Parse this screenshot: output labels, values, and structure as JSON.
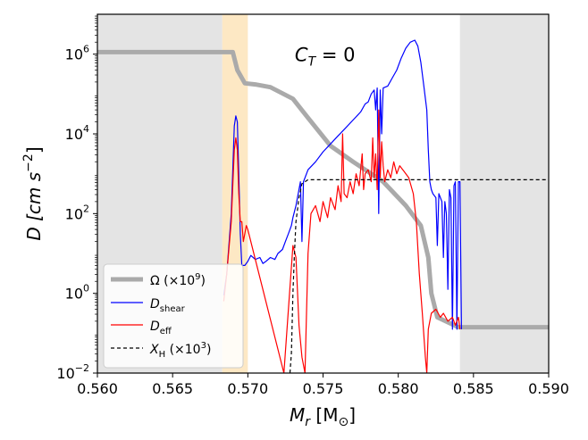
{
  "chart_data": {
    "type": "line",
    "title": "",
    "annotation": {
      "text_main": "C",
      "text_sub": "T",
      "text_rest": " = 0",
      "x": 0.5755,
      "y_log10": 6.0
    },
    "xlabel": {
      "main": "M",
      "sub": "r",
      "unit": " [M",
      "unit_sub": "⊙",
      "close": "]"
    },
    "ylabel": "D [cm s",
    "ylabel_exp": "−2",
    "ylabel_close": "]",
    "xlim": [
      0.56,
      0.59
    ],
    "ylim_log10": [
      -2,
      7
    ],
    "xticks": [
      0.56,
      0.565,
      0.57,
      0.575,
      0.58,
      0.585,
      0.59
    ],
    "xtick_labels": [
      "0.560",
      "0.565",
      "0.570",
      "0.575",
      "0.580",
      "0.585",
      "0.590"
    ],
    "yticks_log10": [
      -2,
      0,
      2,
      4,
      6
    ],
    "ytick_labels": [
      "10",
      "10",
      "10",
      "10",
      "10"
    ],
    "ytick_exps": [
      "−2",
      "0",
      "2",
      "4",
      "6"
    ],
    "regions": [
      {
        "name": "convective-core-region",
        "x0": 0.56,
        "x1": 0.5683,
        "color": "#e4e4e4"
      },
      {
        "name": "transition-band-region",
        "x0": 0.5683,
        "x1": 0.57,
        "color": "#fde8c4"
      },
      {
        "name": "convective-envelope-region",
        "x0": 0.5841,
        "x1": 0.59,
        "color": "#e4e4e4"
      }
    ],
    "series": [
      {
        "name": "Omega",
        "legend_label": "Ω (×10",
        "legend_exp": "9",
        "legend_close": ")",
        "color": "#aaaaaa",
        "width": 5,
        "dash": "",
        "points": [
          [
            0.56,
            6.05
          ],
          [
            0.569,
            6.05
          ],
          [
            0.5693,
            5.6
          ],
          [
            0.5698,
            5.27
          ],
          [
            0.5705,
            5.24
          ],
          [
            0.5715,
            5.17
          ],
          [
            0.573,
            4.88
          ],
          [
            0.574,
            4.4
          ],
          [
            0.5755,
            3.7
          ],
          [
            0.577,
            3.3
          ],
          [
            0.579,
            2.8
          ],
          [
            0.5805,
            2.2
          ],
          [
            0.5815,
            1.7
          ],
          [
            0.582,
            0.9
          ],
          [
            0.5822,
            0.0
          ],
          [
            0.5826,
            -0.6
          ],
          [
            0.584,
            -0.85
          ],
          [
            0.59,
            -0.85
          ]
        ]
      },
      {
        "name": "D_shear",
        "legend_label": "D",
        "legend_sub": "shear",
        "color": "#0000ff",
        "width": 1.2,
        "dash": "",
        "points": [
          [
            0.5684,
            -0.05
          ],
          [
            0.5686,
            0.5
          ],
          [
            0.5689,
            2.0
          ],
          [
            0.5691,
            4.2
          ],
          [
            0.5692,
            4.45
          ],
          [
            0.5693,
            4.3
          ],
          [
            0.5694,
            3.0
          ],
          [
            0.5695,
            1.5
          ],
          [
            0.5696,
            0.7
          ],
          [
            0.5698,
            0.7
          ],
          [
            0.57,
            0.8
          ],
          [
            0.5702,
            0.95
          ],
          [
            0.5705,
            0.85
          ],
          [
            0.5708,
            0.9
          ],
          [
            0.571,
            0.75
          ],
          [
            0.5712,
            0.8
          ],
          [
            0.5715,
            0.9
          ],
          [
            0.5718,
            0.85
          ],
          [
            0.572,
            1.0
          ],
          [
            0.5723,
            1.1
          ],
          [
            0.5725,
            1.3
          ],
          [
            0.5727,
            1.5
          ],
          [
            0.5729,
            1.7
          ],
          [
            0.573,
            1.9
          ],
          [
            0.5732,
            2.2
          ],
          [
            0.5735,
            2.8
          ],
          [
            0.5736,
            1.3
          ],
          [
            0.5737,
            2.8
          ],
          [
            0.574,
            3.1
          ],
          [
            0.5745,
            3.3
          ],
          [
            0.575,
            3.55
          ],
          [
            0.5755,
            3.75
          ],
          [
            0.576,
            3.95
          ],
          [
            0.5765,
            4.15
          ],
          [
            0.577,
            4.35
          ],
          [
            0.5775,
            4.55
          ],
          [
            0.5778,
            4.75
          ],
          [
            0.578,
            4.8
          ],
          [
            0.5782,
            5.0
          ],
          [
            0.5784,
            5.1
          ],
          [
            0.5785,
            4.6
          ],
          [
            0.5786,
            5.15
          ],
          [
            0.5787,
            2.0
          ],
          [
            0.5788,
            5.1
          ],
          [
            0.5789,
            4.0
          ],
          [
            0.579,
            5.15
          ],
          [
            0.5793,
            5.2
          ],
          [
            0.5796,
            5.4
          ],
          [
            0.5799,
            5.6
          ],
          [
            0.5802,
            5.9
          ],
          [
            0.5805,
            6.15
          ],
          [
            0.5808,
            6.3
          ],
          [
            0.5811,
            6.35
          ],
          [
            0.5813,
            6.2
          ],
          [
            0.5815,
            5.8
          ],
          [
            0.5817,
            5.2
          ],
          [
            0.5819,
            4.6
          ],
          [
            0.582,
            3.6
          ],
          [
            0.5821,
            2.8
          ],
          [
            0.5822,
            2.6
          ],
          [
            0.5823,
            2.5
          ],
          [
            0.5825,
            2.4
          ],
          [
            0.5826,
            1.2
          ],
          [
            0.5827,
            2.5
          ],
          [
            0.5829,
            2.3
          ],
          [
            0.583,
            0.9
          ],
          [
            0.5831,
            2.3
          ],
          [
            0.5832,
            2.0
          ],
          [
            0.5833,
            0.1
          ],
          [
            0.5834,
            2.6
          ],
          [
            0.5835,
            2.4
          ],
          [
            0.5836,
            -0.9
          ],
          [
            0.5837,
            2.7
          ],
          [
            0.5838,
            2.8
          ],
          [
            0.5839,
            -0.9
          ],
          [
            0.584,
            2.8
          ],
          [
            0.5841,
            2.8
          ],
          [
            0.5842,
            -0.9
          ]
        ]
      },
      {
        "name": "D_eff",
        "legend_label": "D",
        "legend_sub": "eff",
        "color": "#ff0000",
        "width": 1.2,
        "dash": "",
        "points": [
          [
            0.5684,
            -0.2
          ],
          [
            0.5686,
            0.5
          ],
          [
            0.5689,
            1.8
          ],
          [
            0.5691,
            3.6
          ],
          [
            0.5692,
            3.9
          ],
          [
            0.5693,
            3.6
          ],
          [
            0.5694,
            2.5
          ],
          [
            0.5695,
            1.8
          ],
          [
            0.5696,
            1.8
          ],
          [
            0.5697,
            1.3
          ],
          [
            0.5698,
            1.5
          ],
          [
            0.5699,
            1.7
          ],
          [
            0.57,
            1.6
          ],
          [
            0.5724,
            -2.0
          ],
          [
            0.573,
            1.2
          ],
          [
            0.5732,
            0.9
          ],
          [
            0.5734,
            -0.8
          ],
          [
            0.5736,
            -1.6
          ],
          [
            0.5738,
            -2.0
          ],
          [
            0.574,
            1.0
          ],
          [
            0.5742,
            2.0
          ],
          [
            0.5745,
            2.2
          ],
          [
            0.5748,
            1.8
          ],
          [
            0.575,
            2.3
          ],
          [
            0.5753,
            1.9
          ],
          [
            0.5755,
            2.4
          ],
          [
            0.5758,
            2.1
          ],
          [
            0.576,
            2.7
          ],
          [
            0.5762,
            2.3
          ],
          [
            0.5763,
            4.0
          ],
          [
            0.5764,
            2.5
          ],
          [
            0.5766,
            2.4
          ],
          [
            0.5768,
            2.8
          ],
          [
            0.577,
            2.5
          ],
          [
            0.5772,
            3.0
          ],
          [
            0.5774,
            2.7
          ],
          [
            0.5776,
            3.5
          ],
          [
            0.5777,
            2.6
          ],
          [
            0.5778,
            3.0
          ],
          [
            0.578,
            3.1
          ],
          [
            0.5782,
            2.8
          ],
          [
            0.5783,
            3.9
          ],
          [
            0.5784,
            2.9
          ],
          [
            0.5785,
            3.5
          ],
          [
            0.5786,
            2.6
          ],
          [
            0.5787,
            4.6
          ],
          [
            0.5788,
            2.9
          ],
          [
            0.5789,
            3.8
          ],
          [
            0.579,
            3.2
          ],
          [
            0.5791,
            2.8
          ],
          [
            0.5793,
            3.1
          ],
          [
            0.5795,
            2.9
          ],
          [
            0.5797,
            3.3
          ],
          [
            0.5799,
            3.0
          ],
          [
            0.5801,
            3.2
          ],
          [
            0.5804,
            3.05
          ],
          [
            0.5807,
            2.9
          ],
          [
            0.581,
            2.5
          ],
          [
            0.5812,
            1.8
          ],
          [
            0.5814,
            0.5
          ],
          [
            0.5816,
            -0.5
          ],
          [
            0.5818,
            -1.6
          ],
          [
            0.5819,
            -2.0
          ],
          [
            0.582,
            -0.9
          ],
          [
            0.5822,
            -0.5
          ],
          [
            0.5825,
            -0.4
          ],
          [
            0.5828,
            -0.6
          ],
          [
            0.583,
            -0.5
          ],
          [
            0.5833,
            -0.7
          ],
          [
            0.5836,
            -0.6
          ],
          [
            0.5838,
            -0.8
          ],
          [
            0.584,
            -0.6
          ],
          [
            0.5841,
            -0.9
          ]
        ]
      },
      {
        "name": "X_H",
        "legend_label": "X",
        "legend_sub": "H",
        "legend_rest": " (×10",
        "legend_exp": "3",
        "legend_close": ")",
        "color": "#000000",
        "width": 1.2,
        "dash": "4,3",
        "points": [
          [
            0.5728,
            -2.0
          ],
          [
            0.5729,
            -1.5
          ],
          [
            0.573,
            0.0
          ],
          [
            0.5731,
            1.0
          ],
          [
            0.5732,
            1.8
          ],
          [
            0.5734,
            2.4
          ],
          [
            0.5736,
            2.75
          ],
          [
            0.574,
            2.85
          ],
          [
            0.576,
            2.85
          ],
          [
            0.59,
            2.85
          ]
        ]
      }
    ],
    "legend_position": "lower-left"
  }
}
